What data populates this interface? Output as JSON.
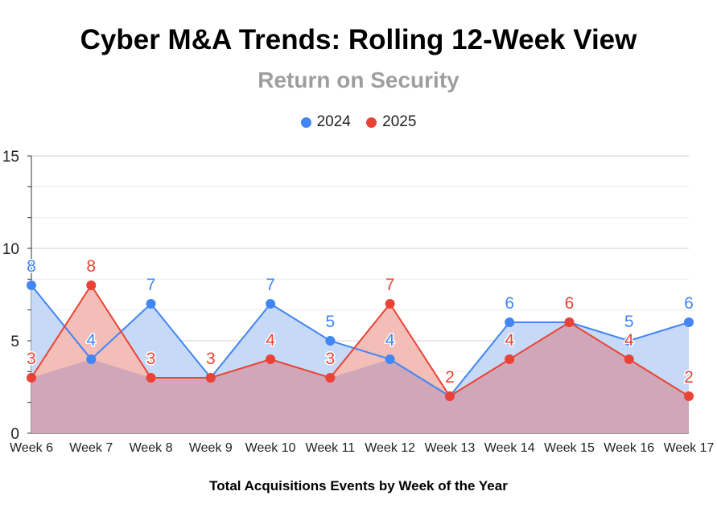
{
  "chart_data": {
    "type": "area",
    "title": "Cyber M&A Trends: Rolling 12-Week View",
    "subtitle": "Return on Security",
    "xlabel": "Total Acquisitions Events by Week of the Year",
    "ylabel": "",
    "ylim": [
      0,
      15
    ],
    "yticks": [
      "0",
      "5",
      "10",
      "15"
    ],
    "categories": [
      "Week 6",
      "Week 7",
      "Week 8",
      "Week 9",
      "Week 10",
      "Week 11",
      "Week 12",
      "Week 13",
      "Week 14",
      "Week 15",
      "Week 16",
      "Week 17"
    ],
    "series": [
      {
        "name": "2024",
        "color": "#4285f4",
        "fill": "#c6d9f7",
        "values": [
          8,
          4,
          7,
          3,
          7,
          5,
          4,
          2,
          6,
          6,
          5,
          6
        ]
      },
      {
        "name": "2025",
        "color": "#ea4335",
        "fill": "#f3bdb8",
        "values": [
          3,
          8,
          3,
          3,
          4,
          3,
          7,
          2,
          4,
          6,
          4,
          2
        ]
      }
    ],
    "overlap_fill": "#cfa7b9",
    "grid": true,
    "legend_position": "top"
  }
}
